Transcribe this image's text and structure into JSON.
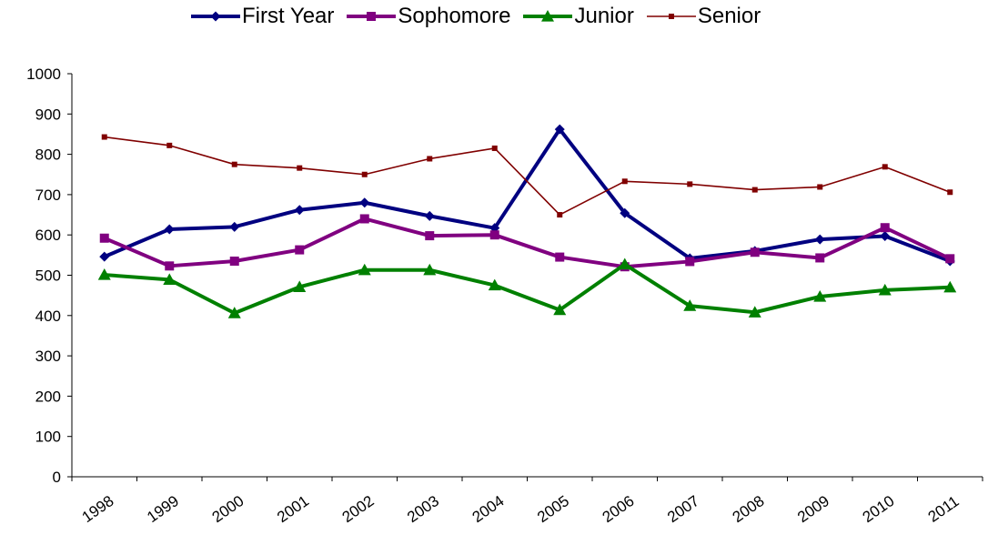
{
  "chart_data": {
    "type": "line",
    "x": [
      "1998",
      "1999",
      "2000",
      "2001",
      "2002",
      "2003",
      "2004",
      "2005",
      "2006",
      "2007",
      "2008",
      "2009",
      "2010",
      "2011"
    ],
    "ylim": [
      0,
      1000
    ],
    "yticks": [
      "0",
      "100",
      "200",
      "300",
      "400",
      "500",
      "600",
      "700",
      "800",
      "900",
      "1000"
    ],
    "legend_position": "top",
    "grid": false,
    "series": [
      {
        "name": "First Year",
        "color": "#000080",
        "marker": "diamond",
        "values": [
          546,
          614,
          620,
          662,
          680,
          647,
          617,
          862,
          654,
          542,
          560,
          589,
          597,
          535
        ]
      },
      {
        "name": "Sophomore",
        "color": "#800080",
        "marker": "square",
        "values": [
          592,
          523,
          535,
          563,
          640,
          598,
          600,
          545,
          521,
          534,
          557,
          543,
          618,
          541
        ]
      },
      {
        "name": "Junior",
        "color": "#008000",
        "marker": "triangle",
        "values": [
          501,
          489,
          406,
          471,
          513,
          513,
          475,
          414,
          527,
          424,
          408,
          447,
          463,
          470
        ]
      },
      {
        "name": "Senior",
        "color": "#800000",
        "marker": "small-square",
        "values": [
          843,
          822,
          775,
          766,
          750,
          789,
          815,
          650,
          733,
          726,
          712,
          719,
          769,
          706
        ]
      }
    ]
  }
}
